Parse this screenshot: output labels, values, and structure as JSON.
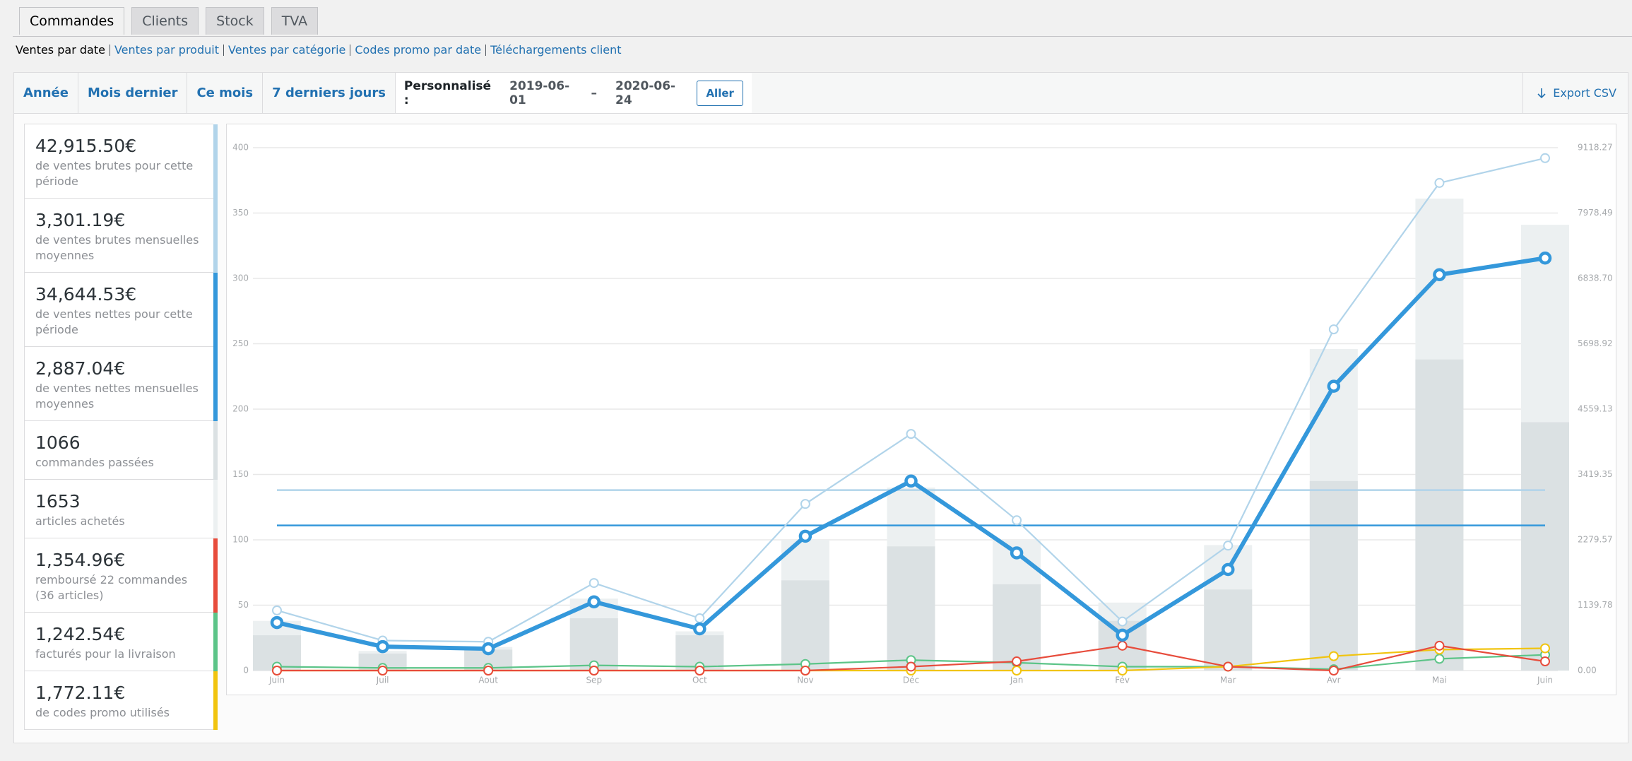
{
  "tabs": [
    "Commandes",
    "Clients",
    "Stock",
    "TVA"
  ],
  "subnav": [
    "Ventes par date",
    "Ventes par produit",
    "Ventes par catégorie",
    "Codes promo par date",
    "Téléchargements client"
  ],
  "range_tabs": [
    "Année",
    "Mois dernier",
    "Ce mois",
    "7 derniers jours"
  ],
  "custom_range": {
    "label": "Personnalisé :",
    "start": "2019-06-01",
    "separator": "–",
    "end": "2020-06-24",
    "button": "Aller"
  },
  "export": "Export CSV",
  "legend": [
    {
      "value": "42,915.50€",
      "text": "de ventes brutes pour cette période",
      "color": "#b1d4ea"
    },
    {
      "value": "3,301.19€",
      "text": "de ventes brutes mensuelles moyennes",
      "color": "#b1d4ea"
    },
    {
      "value": "34,644.53€",
      "text": "de ventes nettes pour cette période",
      "color": "#3498db"
    },
    {
      "value": "2,887.04€",
      "text": "de ventes nettes mensuelles moyennes",
      "color": "#3498db"
    },
    {
      "value": "1066",
      "text": "commandes passées",
      "color": "#dbe1e3"
    },
    {
      "value": "1653",
      "text": "articles achetés",
      "color": "#ecf0f1"
    },
    {
      "value": "1,354.96€",
      "text": "remboursé 22 commandes (36 articles)",
      "color": "#e74c3c"
    },
    {
      "value": "1,242.54€",
      "text": "facturés pour la livraison",
      "color": "#5cc488"
    },
    {
      "value": "1,772.11€",
      "text": "de codes promo utilisés",
      "color": "#f1c40f"
    }
  ],
  "chart_data": {
    "type": "combo",
    "categories": [
      "Juin",
      "Juil",
      "Aout",
      "Sep",
      "Oct",
      "Nov",
      "Déc",
      "Jan",
      "Fév",
      "Mar",
      "Avr",
      "Mai",
      "Juin"
    ],
    "ylim": [
      0,
      400
    ],
    "yticks": [
      0,
      50,
      100,
      150,
      200,
      250,
      300,
      350,
      400
    ],
    "y2lim": [
      0,
      9118.27
    ],
    "y2ticks": [
      {
        "value": 0,
        "label": "0.00"
      },
      {
        "value": 1139.78,
        "label": "1139.78"
      },
      {
        "value": 2279.57,
        "label": "2279.57"
      },
      {
        "value": 3419.35,
        "label": "3419.35"
      },
      {
        "value": 4559.13,
        "label": "4559.13"
      },
      {
        "value": 5698.92,
        "label": "5698.92"
      },
      {
        "value": 6838.7,
        "label": "6838.70"
      },
      {
        "value": 7978.49,
        "label": "7978.49"
      },
      {
        "value": 9118.27,
        "label": "9118.27"
      }
    ],
    "grid": true,
    "series": [
      {
        "type": "bar",
        "color": "#ecf0f1",
        "values": [
          38,
          15,
          18,
          55,
          30,
          100,
          140,
          100,
          52,
          96,
          246,
          361,
          341
        ]
      },
      {
        "type": "bar",
        "color": "#dbe1e3",
        "values": [
          27,
          13,
          16,
          40,
          27,
          69,
          95,
          66,
          38,
          62,
          145,
          238,
          190
        ]
      },
      {
        "type": "line",
        "axis": "y2",
        "color": "#5cc488",
        "values": [
          68,
          46,
          46,
          91,
          68,
          114,
          182,
          137,
          68,
          68,
          23,
          205,
          274
        ]
      },
      {
        "type": "line",
        "axis": "y2",
        "color": "#f1c40f",
        "values": [
          0,
          0,
          0,
          0,
          0,
          0,
          0,
          0,
          0,
          68,
          251,
          365,
          388
        ]
      },
      {
        "type": "line",
        "axis": "y2",
        "color": "#e74c3c",
        "values": [
          0,
          0,
          0,
          0,
          0,
          0,
          68,
          160,
          433,
          68,
          0,
          433,
          160
        ]
      },
      {
        "type": "line",
        "axis": "y2",
        "color": "#b1d4ea",
        "values": [
          1049,
          524,
          502,
          1527,
          912,
          2906,
          4126,
          2621,
          855,
          2179,
          5950,
          8503,
          8936
        ]
      },
      {
        "type": "line",
        "axis": "y2",
        "color": "#3498db",
        "thick": true,
        "values": [
          837,
          417,
          381,
          1199,
          727,
          2343,
          3305,
          2052,
          618,
          1762,
          4958,
          6903,
          7193
        ]
      }
    ],
    "reference_lines": [
      {
        "axis": "y2",
        "color": "#b1d4ea",
        "value": 3146
      },
      {
        "axis": "y2",
        "color": "#3498db",
        "value": 2530
      }
    ]
  }
}
